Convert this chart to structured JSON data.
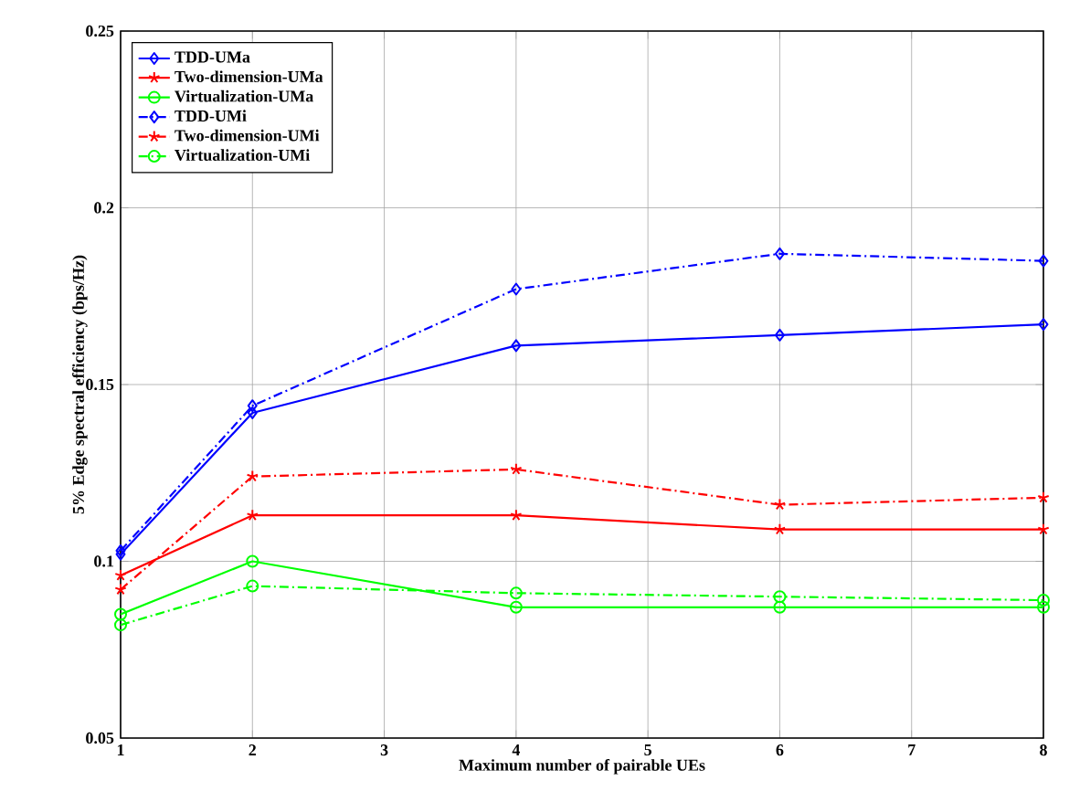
{
  "chart_data": {
    "type": "line",
    "xlabel": "Maximum number of pairable UEs",
    "ylabel": "5% Edge spectral efficiency (bps/Hz)",
    "x": [
      1,
      2,
      4,
      6,
      8
    ],
    "xlim": [
      1,
      8
    ],
    "xticks": [
      1,
      2,
      3,
      4,
      5,
      6,
      7,
      8
    ],
    "ylim": [
      0.05,
      0.25
    ],
    "yticks": [
      0.05,
      0.1,
      0.15,
      0.2,
      0.25
    ],
    "grid": true,
    "legend": "top left",
    "series": [
      {
        "name": "TDD-UMa",
        "color": "#0000ff",
        "marker": "diamond",
        "line_style": "solid",
        "values": [
          0.102,
          0.142,
          0.161,
          0.164,
          0.167
        ]
      },
      {
        "name": "Two-dimension-UMa",
        "color": "#ff0000",
        "marker": "cross",
        "line_style": "solid",
        "values": [
          0.096,
          0.113,
          0.113,
          0.109,
          0.109
        ]
      },
      {
        "name": "Virtualization-UMa",
        "color": "#00ff00",
        "marker": "circle",
        "line_style": "solid",
        "values": [
          0.085,
          0.1,
          0.087,
          0.087,
          0.087
        ]
      },
      {
        "name": "TDD-UMi",
        "color": "#0000ff",
        "marker": "diamond",
        "line_style": "dashdot",
        "values": [
          0.103,
          0.144,
          0.177,
          0.187,
          0.185
        ]
      },
      {
        "name": "Two-dimension-UMi",
        "color": "#ff0000",
        "marker": "cross",
        "line_style": "dashdot",
        "values": [
          0.092,
          0.124,
          0.126,
          0.116,
          0.118
        ]
      },
      {
        "name": "Virtualization-UMi",
        "color": "#00ff00",
        "marker": "circle",
        "line_style": "dashdot",
        "values": [
          0.082,
          0.093,
          0.091,
          0.09,
          0.089
        ]
      }
    ]
  }
}
